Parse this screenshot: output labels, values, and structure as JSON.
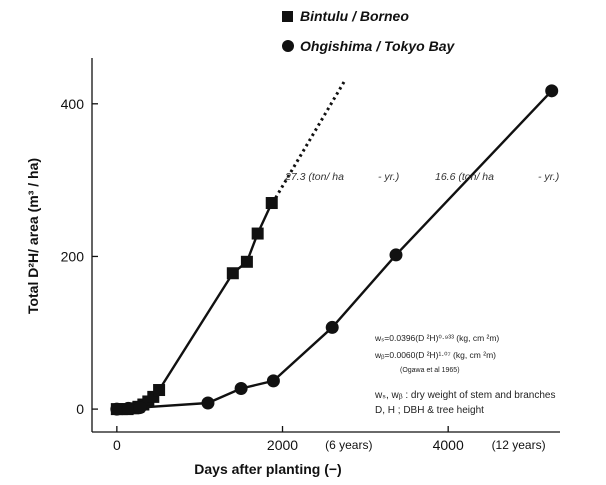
{
  "chart_data": {
    "type": "line",
    "xlabel": "Days after planting (−)",
    "ylabel": "Total D²H/ area  (m³ / ha)",
    "xlim": [
      -300,
      5350
    ],
    "ylim": [
      -30,
      460
    ],
    "x_ticks": [
      0,
      2000,
      4000
    ],
    "y_ticks": [
      0,
      200,
      400
    ],
    "x_tick_notes": [
      {
        "x": 2800,
        "text": "(6 years)"
      },
      {
        "x": 4850,
        "text": "(12 years)"
      }
    ],
    "legend_position": "top-right",
    "grid": false,
    "series": [
      {
        "name": "Bintulu / Borneo",
        "marker": "square",
        "x": [
          0,
          60,
          130,
          200,
          260,
          320,
          380,
          440,
          510,
          1400,
          1570,
          1700,
          1870
        ],
        "y": [
          0,
          0,
          0,
          1,
          3,
          6,
          10,
          16,
          25,
          178,
          193,
          230,
          270
        ],
        "extension": {
          "style": "dotted",
          "x": [
            1880,
            2750
          ],
          "y": [
            270,
            430
          ]
        }
      },
      {
        "name": "Ohgishima / Tokyo Bay",
        "marker": "circle",
        "x": [
          0,
          140,
          280,
          1100,
          1500,
          1890,
          2600,
          3370,
          5250
        ],
        "y": [
          0,
          1,
          2,
          8,
          27,
          37,
          107,
          202,
          417
        ]
      }
    ],
    "annotations": {
      "rates": [
        "27.3 (ton/ ha",
        "- yr.)",
        "16.6 (ton/ ha",
        "- yr.)"
      ],
      "equation1": "wₛ=0.0396(D ²H)⁰·⁹³³ (kg, cm ²m)",
      "equation2": "wᵦ=0.0060(D ²H)¹·⁰⁲⁷ (kg, cm ²m)",
      "citation": "(Ogawa et al 1965)",
      "note1": "wₛ, wᵦ : dry weight of stem and branches",
      "note2": "D, H ; DBH & tree height"
    }
  }
}
